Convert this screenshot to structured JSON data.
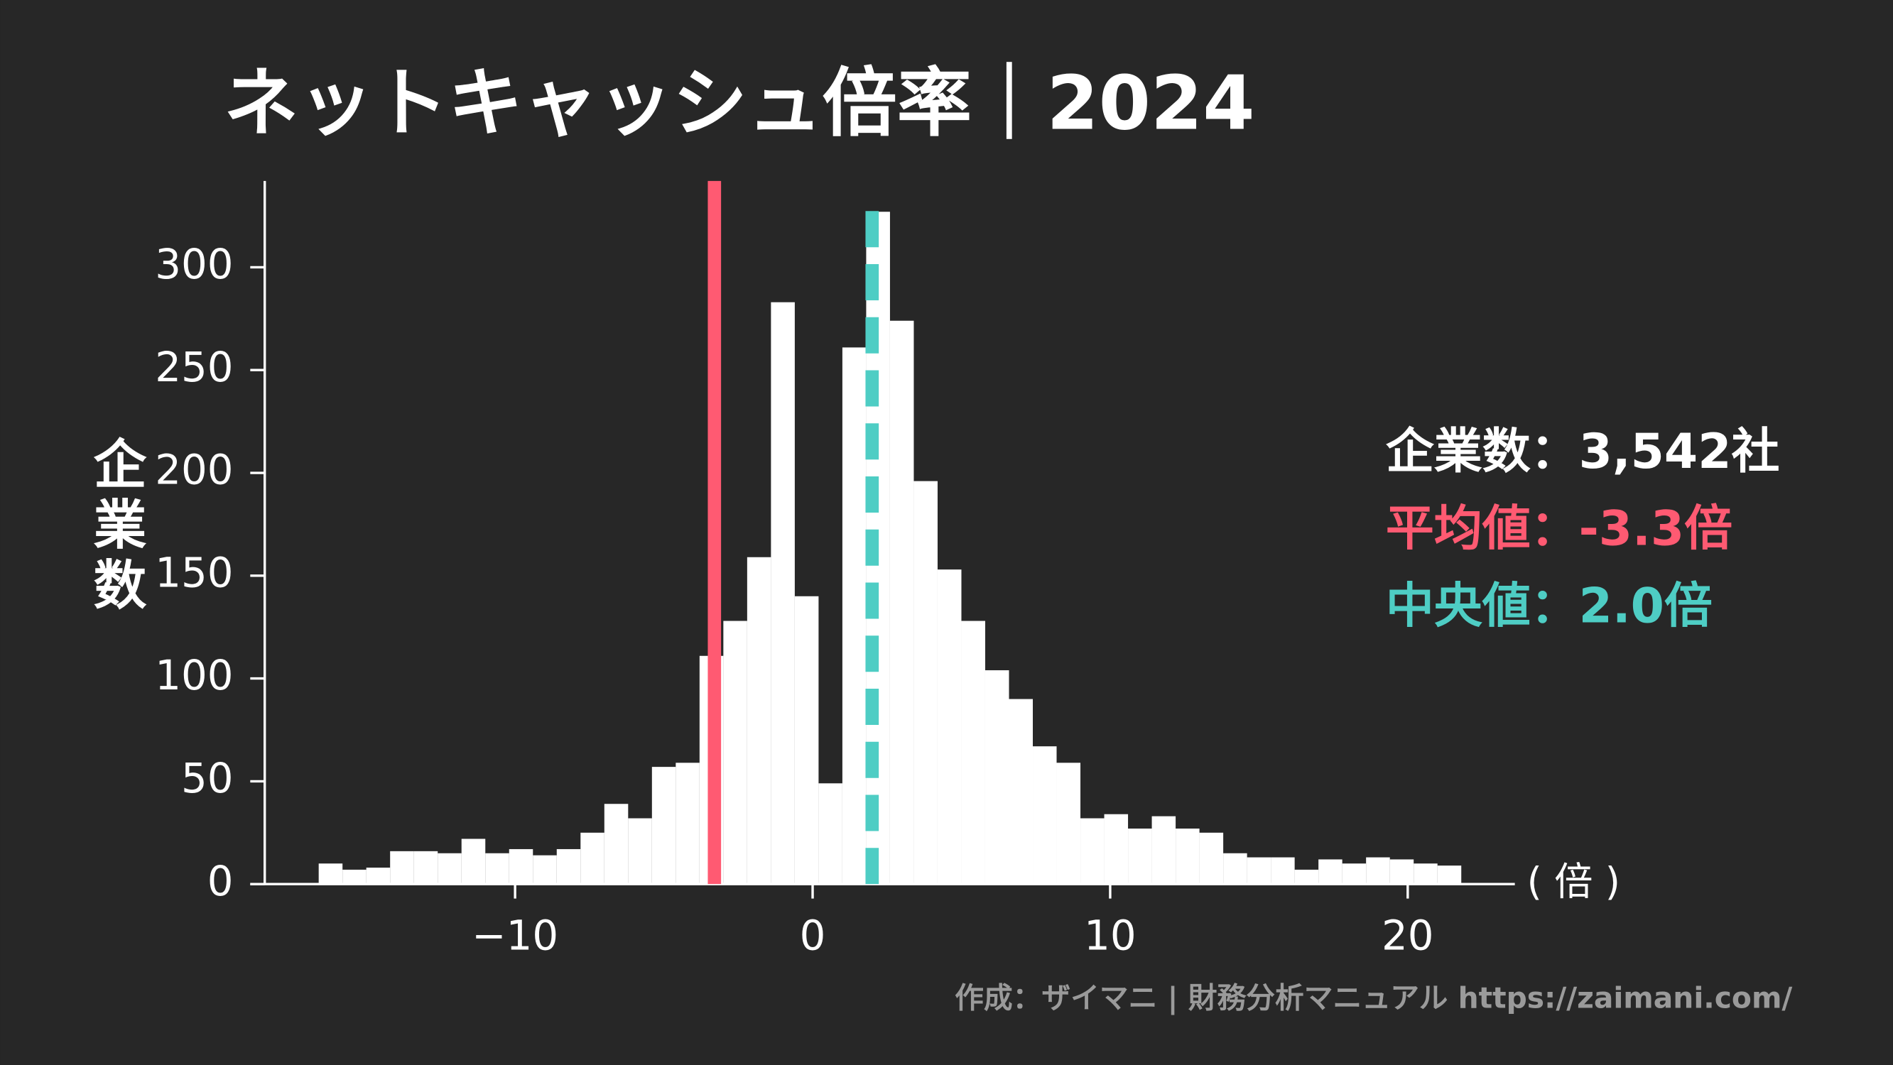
{
  "chart_data": {
    "type": "histogram",
    "title": "ネットキャッシュ倍率｜2024",
    "y_label": "企業数",
    "x_unit": "( 倍 )",
    "bins": [
      -16.6,
      -15.8,
      -15.0,
      -14.2,
      -13.4,
      -12.6,
      -11.8,
      -11.0,
      -10.2,
      -9.4,
      -8.6,
      -7.8,
      -7.0,
      -6.2,
      -5.4,
      -4.6,
      -3.8,
      -3.0,
      -2.2,
      -1.4,
      -0.6,
      0.2,
      1.0,
      1.8,
      2.6,
      3.4,
      4.2,
      5.0,
      5.8,
      6.6,
      7.4,
      8.2,
      9.0,
      9.8,
      10.6,
      11.4,
      12.2,
      13.0,
      13.8,
      14.6,
      15.4,
      16.2,
      17.0,
      17.8,
      18.6,
      19.4,
      20.2,
      21.0,
      21.8
    ],
    "values": [
      10,
      7,
      8,
      16,
      16,
      15,
      22,
      15,
      17,
      14,
      17,
      25,
      39,
      32,
      57,
      59,
      111,
      128,
      159,
      283,
      140,
      49,
      261,
      327,
      274,
      196,
      153,
      128,
      104,
      90,
      67,
      59,
      32,
      34,
      27,
      33,
      27,
      25,
      15,
      13,
      13,
      7,
      12,
      10,
      13,
      12,
      10,
      9
    ],
    "color": "#ffffff",
    "mean": -3.3,
    "mean_color": "#ff5a72",
    "median": 2.0,
    "median_color": "#4ecdc4",
    "annotations": [
      {
        "text": "企業数：3,542社",
        "color": "#ffffff"
      },
      {
        "text": "平均値：-3.3倍",
        "color": "#ff5a72"
      },
      {
        "text": "中央値：2.0倍",
        "color": "#4ecdc4"
      }
    ],
    "xlim": [
      -18.9,
      23.6
    ],
    "ylim": [
      0,
      342
    ],
    "xticks": [
      {
        "value": -10,
        "label": "−10"
      },
      0,
      10,
      20
    ],
    "yticks": [
      0,
      50,
      100,
      150,
      200,
      250,
      300
    ],
    "footer": "作成：ザイマニ | 財務分析マニュアル https://zaimani.com/"
  }
}
